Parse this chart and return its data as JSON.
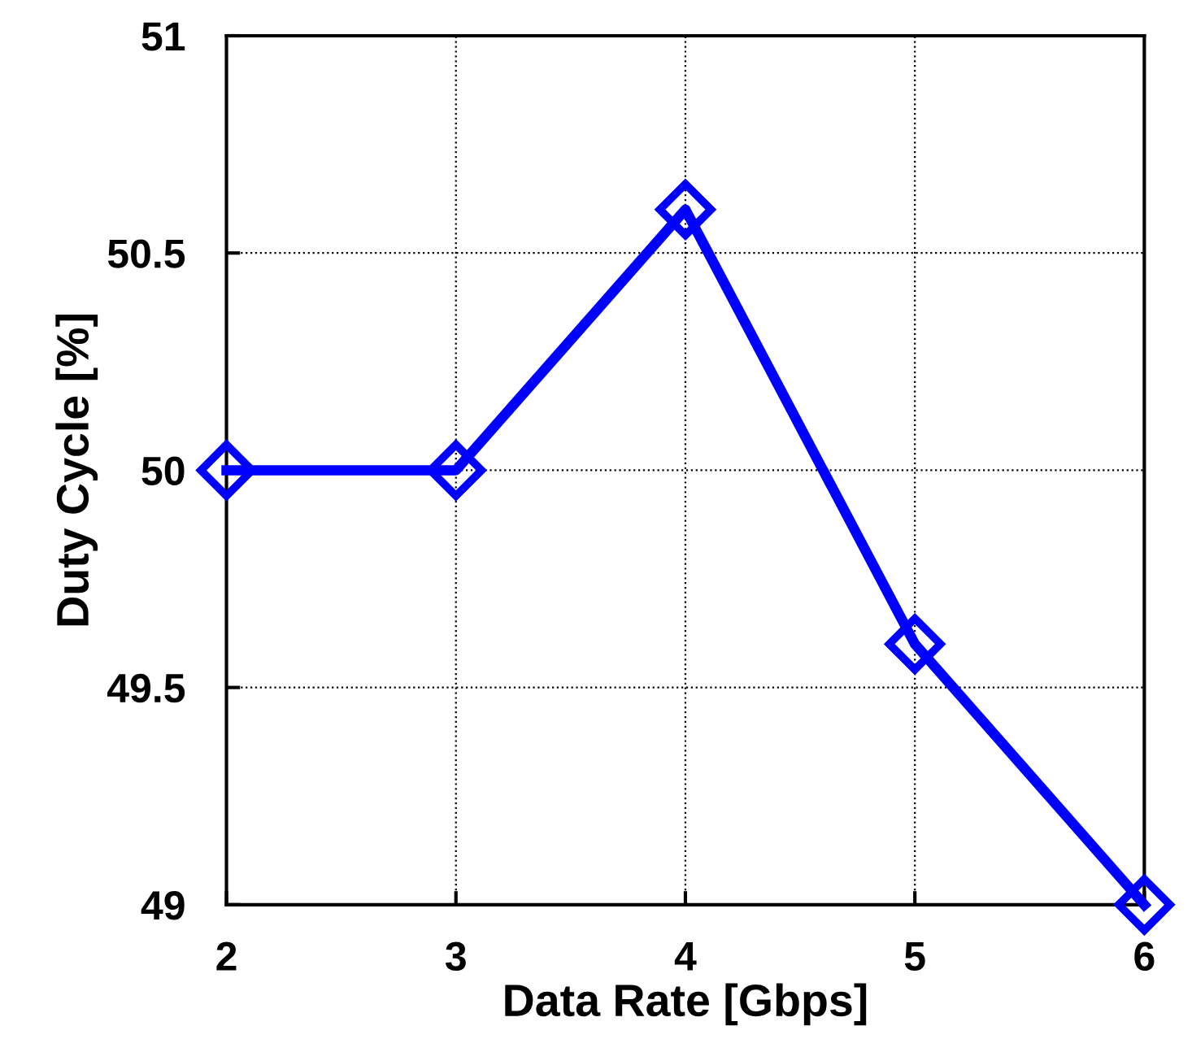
{
  "chart_data": {
    "type": "line",
    "xlabel": "Data Rate [Gbps]",
    "ylabel": "Duty Cycle [%]",
    "x": [
      2,
      3,
      4,
      5,
      6
    ],
    "series": [
      {
        "color": "#0000ff",
        "values": [
          50,
          50,
          50.6,
          49.6,
          49.0
        ]
      }
    ],
    "xlim": [
      2,
      6
    ],
    "xticks": [
      2,
      3,
      4,
      5,
      6
    ],
    "ylim": [
      49,
      51
    ],
    "yticks": [
      49,
      49.5,
      50,
      50.5,
      51
    ],
    "grid": true,
    "marker": "diamond",
    "line_style": "solid"
  }
}
